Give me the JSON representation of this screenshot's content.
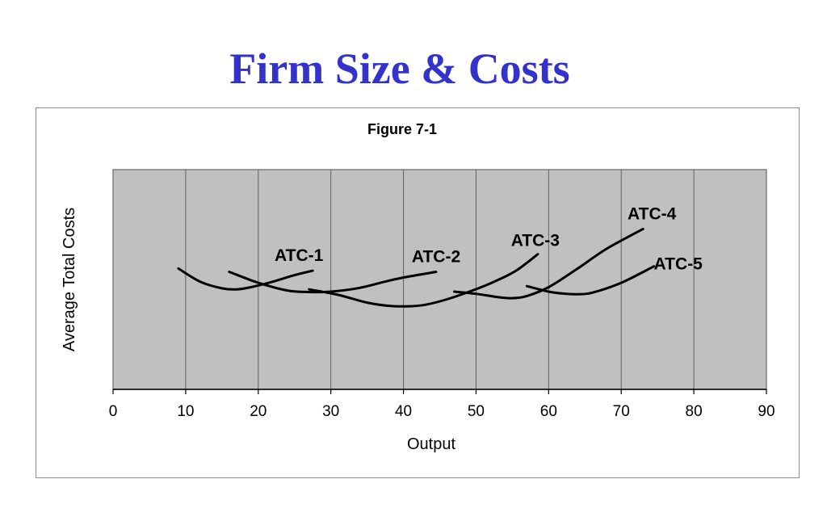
{
  "slide": {
    "title": "Firm Size & Costs"
  },
  "chart_data": {
    "type": "line",
    "title": "Figure 7-1",
    "xlabel": "Output",
    "ylabel": "Average Total Costs",
    "xlim": [
      0,
      90
    ],
    "x_ticks": [
      "0",
      "10",
      "20",
      "30",
      "40",
      "50",
      "60",
      "70",
      "80",
      "90"
    ],
    "grid": "vertical",
    "plot_background": "#c0c0c0",
    "series": [
      {
        "name": "ATC-1",
        "x": [
          9,
          12,
          15,
          17,
          19,
          22,
          25,
          27.5
        ],
        "y": [
          55,
          49,
          46,
          45.5,
          46.5,
          49,
          52,
          54
        ]
      },
      {
        "name": "ATC-2",
        "x": [
          16,
          20,
          24,
          27,
          30,
          34,
          38,
          41,
          44.5
        ],
        "y": [
          53.5,
          48.5,
          45,
          44.3,
          44.5,
          46.2,
          49.5,
          51.5,
          53.5
        ]
      },
      {
        "name": "ATC-3",
        "x": [
          27,
          31,
          35,
          38,
          40.5,
          43,
          46,
          49.5,
          52.5,
          55.5,
          58.5
        ],
        "y": [
          45.5,
          43,
          39.5,
          38,
          37.8,
          38.5,
          41,
          45,
          49,
          54,
          61.5
        ]
      },
      {
        "name": "ATC-4",
        "x": [
          47,
          50,
          53,
          55,
          57,
          60,
          64,
          68,
          73
        ],
        "y": [
          44.5,
          43.5,
          42,
          41.5,
          42.5,
          46.5,
          55,
          64,
          73
        ]
      },
      {
        "name": "ATC-5",
        "x": [
          57,
          60,
          62,
          64,
          66,
          70,
          74.5
        ],
        "y": [
          47,
          44.5,
          43.6,
          43.3,
          44,
          48.5,
          56
        ]
      }
    ]
  }
}
